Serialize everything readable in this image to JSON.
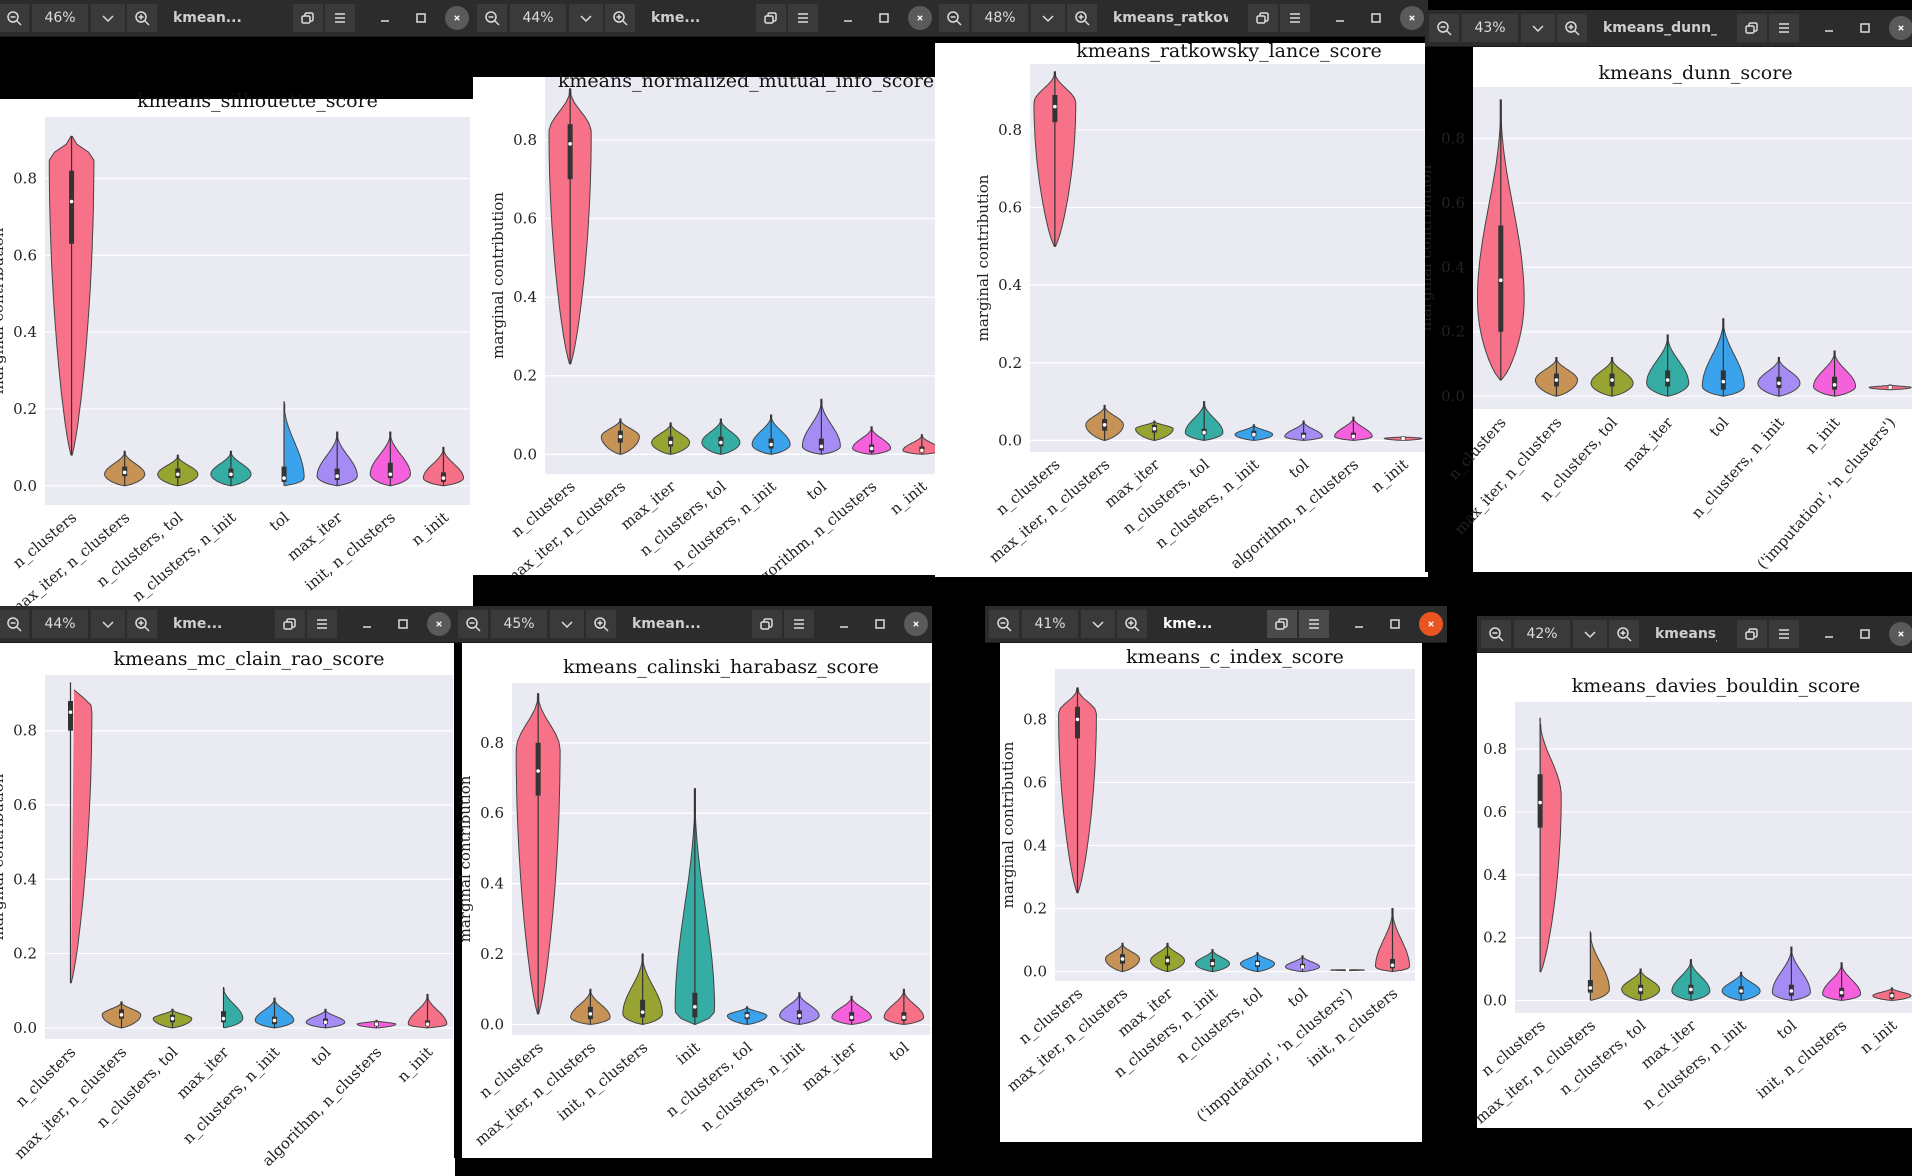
{
  "ui": {
    "ylabel": "marginal contribution",
    "icons": {
      "zoom_out": "zoom-out-icon",
      "zoom_in": "zoom-in-icon",
      "chevron": "chevron-down-icon",
      "restore": "restore-icon",
      "menu": "hamburger-menu-icon",
      "minimize": "minimize-icon",
      "maximize": "maximize-icon",
      "close": "close-icon"
    },
    "colors": {
      "plot_bg": "#eaeaf2",
      "titlebar": "#2c2c2c",
      "close_active": "#e95420"
    }
  },
  "windows": [
    {
      "id": "silhouette",
      "zoom": "46%",
      "tab_title": "kmean...",
      "active": false
    },
    {
      "id": "nmi",
      "zoom": "44%",
      "tab_title": "kme...",
      "active": false
    },
    {
      "id": "ratkowsky",
      "zoom": "48%",
      "tab_title": "kmeans_ratkowsky_l...",
      "active": false
    },
    {
      "id": "dunn",
      "zoom": "43%",
      "tab_title": "kmeans_dunn_...",
      "active": false
    },
    {
      "id": "mcclain",
      "zoom": "44%",
      "tab_title": "kme...",
      "active": false
    },
    {
      "id": "calinski",
      "zoom": "45%",
      "tab_title": "kmean...",
      "active": false
    },
    {
      "id": "cindex",
      "zoom": "41%",
      "tab_title": "kme...",
      "active": true
    },
    {
      "id": "davies",
      "zoom": "42%",
      "tab_title": "kmeans_d...",
      "active": false
    }
  ],
  "chart_data": [
    {
      "id": "silhouette",
      "type": "violin",
      "title": "kmeans_silhouette_score",
      "ylabel": "marginal contribution",
      "yticks": [
        0.0,
        0.2,
        0.4,
        0.6,
        0.8
      ],
      "ylim": [
        -0.05,
        0.96
      ],
      "categories": [
        "n_clusters",
        "max_iter, n_clusters",
        "n_clusters, tol",
        "n_clusters, n_init",
        "tol",
        "max_iter",
        "init, n_clusters",
        "n_init"
      ],
      "violins": [
        {
          "min": 0.08,
          "max": 0.91,
          "q1": 0.63,
          "med": 0.74,
          "q3": 0.82,
          "peak": 0.85
        },
        {
          "min": 0.0,
          "max": 0.09,
          "q1": 0.025,
          "med": 0.035,
          "q3": 0.05,
          "peak": 0.03
        },
        {
          "min": 0.0,
          "max": 0.08,
          "q1": 0.02,
          "med": 0.03,
          "q3": 0.045,
          "peak": 0.03
        },
        {
          "min": 0.0,
          "max": 0.09,
          "q1": 0.02,
          "med": 0.03,
          "q3": 0.045,
          "peak": 0.03
        },
        {
          "min": 0.0,
          "max": 0.22,
          "q1": 0.01,
          "med": 0.02,
          "q3": 0.05,
          "peak": 0.02
        },
        {
          "min": 0.0,
          "max": 0.14,
          "q1": 0.015,
          "med": 0.025,
          "q3": 0.045,
          "peak": 0.025
        },
        {
          "min": 0.0,
          "max": 0.14,
          "q1": 0.02,
          "med": 0.03,
          "q3": 0.06,
          "peak": 0.03
        },
        {
          "min": 0.0,
          "max": 0.1,
          "q1": 0.01,
          "med": 0.02,
          "q3": 0.035,
          "peak": 0.02
        }
      ]
    },
    {
      "id": "nmi",
      "type": "violin",
      "title": "kmeans_normalized_mutual_info_score",
      "ylabel": "marginal contribution",
      "yticks": [
        0.0,
        0.2,
        0.4,
        0.6,
        0.8
      ],
      "ylim": [
        -0.05,
        0.96
      ],
      "categories": [
        "n_clusters",
        "max_iter, n_clusters",
        "max_iter",
        "n_clusters, tol",
        "n_clusters, n_init",
        "tol",
        "algorithm, n_clusters",
        "n_init"
      ],
      "violins": [
        {
          "min": 0.23,
          "max": 0.93,
          "q1": 0.7,
          "med": 0.79,
          "q3": 0.84,
          "peak": 0.82
        },
        {
          "min": 0.0,
          "max": 0.09,
          "q1": 0.03,
          "med": 0.045,
          "q3": 0.06,
          "peak": 0.045
        },
        {
          "min": 0.0,
          "max": 0.08,
          "q1": 0.02,
          "med": 0.03,
          "q3": 0.045,
          "peak": 0.03
        },
        {
          "min": 0.0,
          "max": 0.09,
          "q1": 0.02,
          "med": 0.03,
          "q3": 0.045,
          "peak": 0.03
        },
        {
          "min": 0.0,
          "max": 0.1,
          "q1": 0.015,
          "med": 0.025,
          "q3": 0.04,
          "peak": 0.025
        },
        {
          "min": 0.0,
          "max": 0.14,
          "q1": 0.01,
          "med": 0.02,
          "q3": 0.04,
          "peak": 0.02
        },
        {
          "min": 0.0,
          "max": 0.07,
          "q1": 0.005,
          "med": 0.015,
          "q3": 0.025,
          "peak": 0.015
        },
        {
          "min": 0.0,
          "max": 0.05,
          "q1": 0.005,
          "med": 0.01,
          "q3": 0.02,
          "peak": 0.01
        }
      ]
    },
    {
      "id": "ratkowsky",
      "type": "violin",
      "title": "kmeans_ratkowsky_lance_score",
      "ylabel": "marginal contribution",
      "yticks": [
        0.0,
        0.2,
        0.4,
        0.6,
        0.8
      ],
      "ylim": [
        -0.03,
        0.97
      ],
      "categories": [
        "n_clusters",
        "max_iter, n_clusters",
        "max_iter",
        "n_clusters, tol",
        "n_clusters, n_init",
        "tol",
        "algorithm, n_clusters",
        "n_init"
      ],
      "violins": [
        {
          "min": 0.5,
          "max": 0.95,
          "q1": 0.82,
          "med": 0.86,
          "q3": 0.89,
          "peak": 0.87
        },
        {
          "min": 0.0,
          "max": 0.09,
          "q1": 0.025,
          "med": 0.04,
          "q3": 0.055,
          "peak": 0.04
        },
        {
          "min": 0.0,
          "max": 0.05,
          "q1": 0.02,
          "med": 0.03,
          "q3": 0.04,
          "peak": 0.03
        },
        {
          "min": 0.0,
          "max": 0.1,
          "q1": 0.015,
          "med": 0.02,
          "q3": 0.03,
          "peak": 0.02
        },
        {
          "min": 0.0,
          "max": 0.04,
          "q1": 0.01,
          "med": 0.015,
          "q3": 0.025,
          "peak": 0.015
        },
        {
          "min": 0.0,
          "max": 0.05,
          "q1": 0.005,
          "med": 0.01,
          "q3": 0.02,
          "peak": 0.01
        },
        {
          "min": 0.0,
          "max": 0.06,
          "q1": 0.005,
          "med": 0.01,
          "q3": 0.02,
          "peak": 0.01
        },
        {
          "min": 0.0,
          "max": 0.01,
          "q1": 0.003,
          "med": 0.005,
          "q3": 0.008,
          "peak": 0.005
        }
      ]
    },
    {
      "id": "dunn",
      "type": "violin",
      "title": "kmeans_dunn_score",
      "ylabel": "marginal contribution",
      "yticks": [
        0.0,
        0.2,
        0.4,
        0.6,
        0.8
      ],
      "ylim": [
        -0.04,
        0.96
      ],
      "categories": [
        "n_clusters",
        "max_iter, n_clusters",
        "n_clusters, tol",
        "max_iter",
        "tol",
        "n_clusters, n_init",
        "n_init",
        "('imputation', 'n_clusters')"
      ],
      "violins": [
        {
          "min": 0.05,
          "max": 0.92,
          "q1": 0.2,
          "med": 0.36,
          "q3": 0.53,
          "peak": 0.3
        },
        {
          "min": 0.0,
          "max": 0.12,
          "q1": 0.03,
          "med": 0.05,
          "q3": 0.07,
          "peak": 0.05
        },
        {
          "min": 0.0,
          "max": 0.12,
          "q1": 0.03,
          "med": 0.05,
          "q3": 0.07,
          "peak": 0.04
        },
        {
          "min": 0.0,
          "max": 0.19,
          "q1": 0.03,
          "med": 0.05,
          "q3": 0.08,
          "peak": 0.04
        },
        {
          "min": 0.0,
          "max": 0.24,
          "q1": 0.02,
          "med": 0.045,
          "q3": 0.08,
          "peak": 0.03
        },
        {
          "min": 0.0,
          "max": 0.12,
          "q1": 0.025,
          "med": 0.04,
          "q3": 0.06,
          "peak": 0.04
        },
        {
          "min": 0.0,
          "max": 0.14,
          "q1": 0.02,
          "med": 0.035,
          "q3": 0.06,
          "peak": 0.03
        },
        {
          "min": 0.02,
          "max": 0.035,
          "q1": 0.024,
          "med": 0.027,
          "q3": 0.03,
          "peak": 0.027
        }
      ]
    },
    {
      "id": "mcclain",
      "type": "violin",
      "title": "kmeans_mc_clain_rao_score",
      "ylabel": "marginal contribution",
      "yticks": [
        0.0,
        0.2,
        0.4,
        0.6,
        0.8
      ],
      "ylim": [
        -0.03,
        0.95
      ],
      "categories": [
        "n_clusters",
        "max_iter, n_clusters",
        "n_clusters, tol",
        "max_iter",
        "n_clusters, n_init",
        "tol",
        "algorithm, n_clusters",
        "n_init"
      ],
      "violins": [
        {
          "min": 0.12,
          "max": 0.93,
          "q1": 0.8,
          "med": 0.85,
          "q3": 0.88,
          "peak": 0.86
        },
        {
          "min": 0.0,
          "max": 0.07,
          "q1": 0.025,
          "med": 0.035,
          "q3": 0.05,
          "peak": 0.035
        },
        {
          "min": 0.0,
          "max": 0.05,
          "q1": 0.015,
          "med": 0.025,
          "q3": 0.035,
          "peak": 0.025
        },
        {
          "min": 0.0,
          "max": 0.11,
          "q1": 0.015,
          "med": 0.025,
          "q3": 0.045,
          "peak": 0.025
        },
        {
          "min": 0.0,
          "max": 0.08,
          "q1": 0.01,
          "med": 0.02,
          "q3": 0.03,
          "peak": 0.02
        },
        {
          "min": 0.0,
          "max": 0.05,
          "q1": 0.01,
          "med": 0.015,
          "q3": 0.025,
          "peak": 0.015
        },
        {
          "min": 0.0,
          "max": 0.02,
          "q1": 0.005,
          "med": 0.01,
          "q3": 0.015,
          "peak": 0.01
        },
        {
          "min": 0.0,
          "max": 0.09,
          "q1": 0.005,
          "med": 0.01,
          "q3": 0.02,
          "peak": 0.01
        }
      ]
    },
    {
      "id": "calinski",
      "type": "violin",
      "title": "kmeans_calinski_harabasz_score",
      "ylabel": "marginal contribution",
      "yticks": [
        0.0,
        0.2,
        0.4,
        0.6,
        0.8
      ],
      "ylim": [
        -0.03,
        0.97
      ],
      "categories": [
        "n_clusters",
        "max_iter, n_clusters",
        "init, n_clusters",
        "init",
        "n_clusters, tol",
        "n_clusters, n_init",
        "max_iter",
        "tol"
      ],
      "violins": [
        {
          "min": 0.03,
          "max": 0.94,
          "q1": 0.65,
          "med": 0.72,
          "q3": 0.8,
          "peak": 0.78
        },
        {
          "min": 0.0,
          "max": 0.1,
          "q1": 0.015,
          "med": 0.03,
          "q3": 0.05,
          "peak": 0.02
        },
        {
          "min": 0.0,
          "max": 0.2,
          "q1": 0.02,
          "med": 0.035,
          "q3": 0.07,
          "peak": 0.03
        },
        {
          "min": 0.0,
          "max": 0.67,
          "q1": 0.02,
          "med": 0.05,
          "q3": 0.09,
          "peak": 0.04
        },
        {
          "min": 0.0,
          "max": 0.05,
          "q1": 0.015,
          "med": 0.025,
          "q3": 0.035,
          "peak": 0.025
        },
        {
          "min": 0.0,
          "max": 0.09,
          "q1": 0.015,
          "med": 0.025,
          "q3": 0.04,
          "peak": 0.025
        },
        {
          "min": 0.0,
          "max": 0.08,
          "q1": 0.01,
          "med": 0.02,
          "q3": 0.035,
          "peak": 0.02
        },
        {
          "min": 0.0,
          "max": 0.1,
          "q1": 0.01,
          "med": 0.02,
          "q3": 0.035,
          "peak": 0.02
        }
      ]
    },
    {
      "id": "cindex",
      "type": "violin",
      "title": "kmeans_c_index_score",
      "ylabel": "marginal contribution",
      "yticks": [
        0.0,
        0.2,
        0.4,
        0.6,
        0.8
      ],
      "ylim": [
        -0.03,
        0.96
      ],
      "categories": [
        "n_clusters",
        "max_iter, n_clusters",
        "max_iter",
        "n_clusters, n_init",
        "n_clusters, tol",
        "tol",
        "('imputation', 'n_clusters')",
        "init, n_clusters"
      ],
      "violins": [
        {
          "min": 0.25,
          "max": 0.9,
          "q1": 0.74,
          "med": 0.8,
          "q3": 0.84,
          "peak": 0.82
        },
        {
          "min": 0.0,
          "max": 0.09,
          "q1": 0.025,
          "med": 0.04,
          "q3": 0.055,
          "peak": 0.04
        },
        {
          "min": 0.0,
          "max": 0.09,
          "q1": 0.02,
          "med": 0.035,
          "q3": 0.05,
          "peak": 0.035
        },
        {
          "min": 0.0,
          "max": 0.07,
          "q1": 0.015,
          "med": 0.025,
          "q3": 0.04,
          "peak": 0.025
        },
        {
          "min": 0.0,
          "max": 0.06,
          "q1": 0.015,
          "med": 0.025,
          "q3": 0.035,
          "peak": 0.025
        },
        {
          "min": 0.0,
          "max": 0.05,
          "q1": 0.01,
          "med": 0.015,
          "q3": 0.025,
          "peak": 0.015
        },
        {
          "min": 0.003,
          "max": 0.006,
          "q1": 0.004,
          "med": 0.005,
          "q3": 0.0055,
          "peak": 0.005
        },
        {
          "min": 0.0,
          "max": 0.2,
          "q1": 0.01,
          "med": 0.02,
          "q3": 0.04,
          "peak": 0.015
        }
      ]
    },
    {
      "id": "davies",
      "type": "violin",
      "title": "kmeans_davies_bouldin_score",
      "ylabel": "marginal contribution",
      "yticks": [
        0.0,
        0.2,
        0.4,
        0.6,
        0.8
      ],
      "ylim": [
        -0.04,
        0.95
      ],
      "categories": [
        "n_clusters",
        "max_iter, n_clusters",
        "n_clusters, tol",
        "max_iter",
        "n_clusters, n_init",
        "tol",
        "init, n_clusters",
        "n_init"
      ],
      "violins": [
        {
          "min": 0.09,
          "max": 0.9,
          "q1": 0.55,
          "med": 0.63,
          "q3": 0.72,
          "peak": 0.65
        },
        {
          "min": 0.0,
          "max": 0.22,
          "q1": 0.025,
          "med": 0.04,
          "q3": 0.065,
          "peak": 0.035
        },
        {
          "min": 0.0,
          "max": 0.1,
          "q1": 0.02,
          "med": 0.035,
          "q3": 0.05,
          "peak": 0.035
        },
        {
          "min": 0.0,
          "max": 0.13,
          "q1": 0.02,
          "med": 0.035,
          "q3": 0.05,
          "peak": 0.03
        },
        {
          "min": 0.0,
          "max": 0.09,
          "q1": 0.02,
          "med": 0.03,
          "q3": 0.045,
          "peak": 0.03
        },
        {
          "min": 0.0,
          "max": 0.17,
          "q1": 0.015,
          "med": 0.03,
          "q3": 0.05,
          "peak": 0.025
        },
        {
          "min": 0.0,
          "max": 0.12,
          "q1": 0.01,
          "med": 0.025,
          "q3": 0.04,
          "peak": 0.02
        },
        {
          "min": 0.0,
          "max": 0.04,
          "q1": 0.005,
          "med": 0.015,
          "q3": 0.025,
          "peak": 0.015
        }
      ]
    }
  ]
}
